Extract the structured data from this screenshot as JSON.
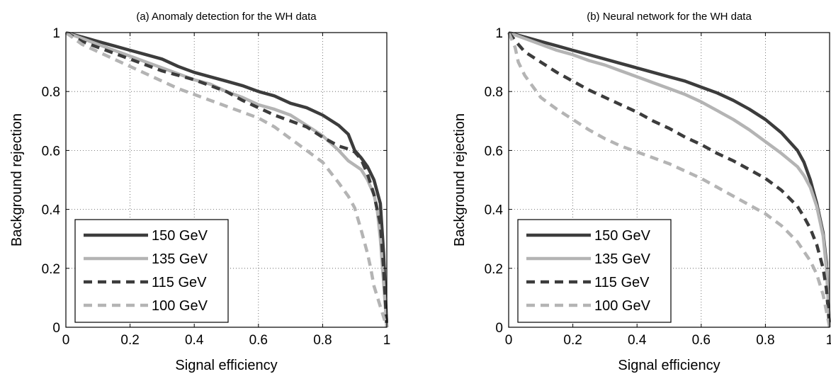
{
  "chart_data": [
    {
      "type": "line",
      "title": "(a) Anomaly detection for the WH data",
      "xlabel": "Signal efficiency",
      "ylabel": "Background rejection",
      "xlim": [
        0,
        1
      ],
      "ylim": [
        0,
        1
      ],
      "xticks": [
        "0",
        "0.2",
        "0.4",
        "0.6",
        "0.8",
        "1"
      ],
      "yticks": [
        "0",
        "0.2",
        "0.4",
        "0.6",
        "0.8",
        "1"
      ],
      "grid": true,
      "legend_position": "bottom-left",
      "series": [
        {
          "name": "150 GeV",
          "color": "#3c3c3c",
          "style": "solid",
          "x": [
            0,
            0.05,
            0.1,
            0.15,
            0.2,
            0.25,
            0.3,
            0.35,
            0.4,
            0.45,
            0.5,
            0.55,
            0.6,
            0.65,
            0.7,
            0.75,
            0.8,
            0.85,
            0.88,
            0.9,
            0.92,
            0.94,
            0.96,
            0.98,
            0.99,
            1.0
          ],
          "y": [
            1.0,
            0.985,
            0.97,
            0.955,
            0.94,
            0.925,
            0.91,
            0.885,
            0.865,
            0.85,
            0.835,
            0.82,
            0.8,
            0.785,
            0.76,
            0.745,
            0.72,
            0.685,
            0.655,
            0.6,
            0.575,
            0.545,
            0.5,
            0.42,
            0.25,
            0.0
          ]
        },
        {
          "name": "135 GeV",
          "color": "#b4b4b4",
          "style": "solid",
          "x": [
            0,
            0.05,
            0.1,
            0.15,
            0.2,
            0.25,
            0.3,
            0.35,
            0.4,
            0.45,
            0.5,
            0.55,
            0.6,
            0.65,
            0.7,
            0.75,
            0.8,
            0.85,
            0.88,
            0.9,
            0.92,
            0.94,
            0.96,
            0.97,
            0.98,
            0.99,
            1.0
          ],
          "y": [
            1.0,
            0.98,
            0.96,
            0.94,
            0.92,
            0.9,
            0.88,
            0.86,
            0.84,
            0.825,
            0.8,
            0.78,
            0.755,
            0.74,
            0.72,
            0.685,
            0.65,
            0.6,
            0.565,
            0.55,
            0.535,
            0.5,
            0.45,
            0.4,
            0.3,
            0.15,
            0.0
          ]
        },
        {
          "name": "115 GeV",
          "color": "#3c3c3c",
          "style": "dashed",
          "x": [
            0,
            0.05,
            0.1,
            0.15,
            0.2,
            0.25,
            0.3,
            0.35,
            0.4,
            0.45,
            0.5,
            0.55,
            0.6,
            0.65,
            0.7,
            0.75,
            0.8,
            0.85,
            0.88,
            0.9,
            0.92,
            0.94,
            0.96,
            0.98,
            0.99,
            1.0
          ],
          "y": [
            1.0,
            0.97,
            0.95,
            0.93,
            0.91,
            0.89,
            0.87,
            0.855,
            0.84,
            0.82,
            0.8,
            0.77,
            0.745,
            0.72,
            0.7,
            0.68,
            0.645,
            0.615,
            0.605,
            0.595,
            0.57,
            0.52,
            0.45,
            0.35,
            0.2,
            0.0
          ]
        },
        {
          "name": "100 GeV",
          "color": "#b4b4b4",
          "style": "dashed",
          "x": [
            0,
            0.05,
            0.1,
            0.15,
            0.2,
            0.25,
            0.3,
            0.35,
            0.4,
            0.45,
            0.5,
            0.55,
            0.6,
            0.65,
            0.7,
            0.75,
            0.8,
            0.85,
            0.88,
            0.9,
            0.92,
            0.94,
            0.95,
            0.96,
            0.98,
            1.0
          ],
          "y": [
            1.0,
            0.96,
            0.935,
            0.91,
            0.885,
            0.86,
            0.835,
            0.81,
            0.79,
            0.77,
            0.75,
            0.73,
            0.71,
            0.68,
            0.64,
            0.6,
            0.56,
            0.49,
            0.445,
            0.405,
            0.33,
            0.25,
            0.2,
            0.14,
            0.07,
            0.0
          ]
        }
      ]
    },
    {
      "type": "line",
      "title": "(b) Neural network for the WH data",
      "xlabel": "Signal efficiency",
      "ylabel": "Background rejection",
      "xlim": [
        0,
        1
      ],
      "ylim": [
        0,
        1
      ],
      "xticks": [
        "0",
        "0.2",
        "0.4",
        "0.6",
        "0.8",
        "1"
      ],
      "yticks": [
        "0",
        "0.2",
        "0.4",
        "0.6",
        "0.8",
        "1"
      ],
      "grid": true,
      "legend_position": "bottom-left",
      "series": [
        {
          "name": "150 GeV",
          "color": "#3c3c3c",
          "style": "solid",
          "x": [
            0,
            0.05,
            0.1,
            0.15,
            0.2,
            0.25,
            0.3,
            0.35,
            0.4,
            0.45,
            0.5,
            0.55,
            0.6,
            0.65,
            0.7,
            0.75,
            0.8,
            0.85,
            0.9,
            0.92,
            0.94,
            0.96,
            0.98,
            0.99,
            1.0
          ],
          "y": [
            1.0,
            0.985,
            0.97,
            0.955,
            0.94,
            0.925,
            0.91,
            0.895,
            0.88,
            0.865,
            0.85,
            0.835,
            0.815,
            0.795,
            0.77,
            0.74,
            0.705,
            0.66,
            0.6,
            0.56,
            0.5,
            0.42,
            0.32,
            0.22,
            0.0
          ]
        },
        {
          "name": "135 GeV",
          "color": "#b4b4b4",
          "style": "solid",
          "x": [
            0,
            0.05,
            0.1,
            0.15,
            0.2,
            0.25,
            0.3,
            0.35,
            0.4,
            0.45,
            0.5,
            0.55,
            0.6,
            0.65,
            0.7,
            0.75,
            0.8,
            0.85,
            0.9,
            0.92,
            0.94,
            0.96,
            0.98,
            0.99,
            1.0
          ],
          "y": [
            1.0,
            0.98,
            0.96,
            0.94,
            0.925,
            0.905,
            0.89,
            0.87,
            0.85,
            0.83,
            0.81,
            0.79,
            0.765,
            0.735,
            0.705,
            0.67,
            0.63,
            0.59,
            0.545,
            0.515,
            0.475,
            0.41,
            0.31,
            0.2,
            0.0
          ]
        },
        {
          "name": "115 GeV",
          "color": "#3c3c3c",
          "style": "dashed",
          "x": [
            0,
            0.03,
            0.05,
            0.1,
            0.15,
            0.2,
            0.25,
            0.3,
            0.35,
            0.4,
            0.45,
            0.5,
            0.55,
            0.6,
            0.65,
            0.7,
            0.75,
            0.8,
            0.85,
            0.9,
            0.92,
            0.94,
            0.96,
            0.98,
            0.99,
            1.0
          ],
          "y": [
            1.0,
            0.96,
            0.935,
            0.9,
            0.865,
            0.835,
            0.805,
            0.78,
            0.755,
            0.73,
            0.7,
            0.675,
            0.645,
            0.62,
            0.59,
            0.565,
            0.535,
            0.505,
            0.465,
            0.41,
            0.375,
            0.335,
            0.28,
            0.2,
            0.13,
            0.0
          ]
        },
        {
          "name": "100 GeV",
          "color": "#b4b4b4",
          "style": "dashed",
          "x": [
            0,
            0.02,
            0.03,
            0.05,
            0.08,
            0.1,
            0.15,
            0.2,
            0.25,
            0.3,
            0.35,
            0.4,
            0.45,
            0.5,
            0.55,
            0.6,
            0.65,
            0.7,
            0.75,
            0.8,
            0.85,
            0.9,
            0.94,
            0.96,
            0.98,
            1.0
          ],
          "y": [
            1.0,
            0.95,
            0.9,
            0.855,
            0.81,
            0.78,
            0.74,
            0.705,
            0.67,
            0.64,
            0.615,
            0.595,
            0.575,
            0.555,
            0.53,
            0.505,
            0.475,
            0.445,
            0.415,
            0.385,
            0.345,
            0.29,
            0.225,
            0.18,
            0.11,
            0.0
          ]
        }
      ]
    }
  ]
}
